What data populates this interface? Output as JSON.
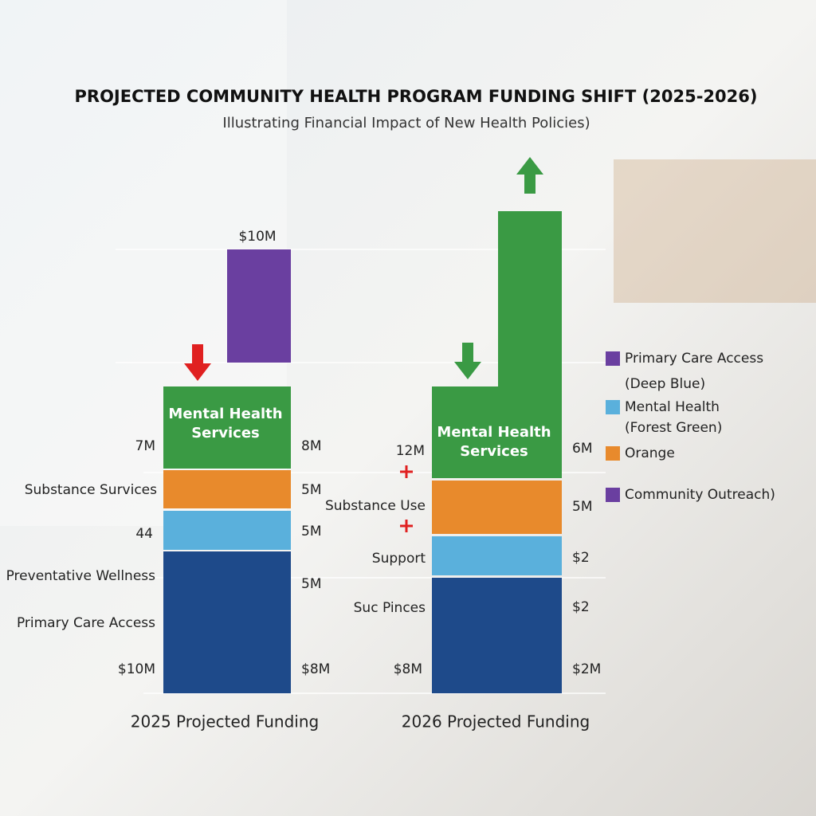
{
  "title": "PROJECTED COMMUNITY HEALTH PROGRAM FUNDING SHIFT (2025-2026)",
  "subtitle": "Illustrating Financial Impact of New Health Policies)",
  "bars": [
    {
      "category": "2025 Projected Funding",
      "top_label": "$10M",
      "segment_label": [
        "Mental Health",
        "Services"
      ],
      "left_labels": [
        "7M",
        "Substance Survices",
        "44",
        "Preventative Wellness",
        "Primary Care Access",
        "$10M"
      ],
      "right_labels": [
        "8M",
        "5M",
        "5M",
        "5M",
        "$8M"
      ]
    },
    {
      "category": "2026 Projected Funding",
      "segment_label": [
        "Mental Health",
        "Services"
      ],
      "left_labels": [
        "12M",
        "Substance Use",
        "Support",
        "Suc Pinces",
        "$8M"
      ],
      "right_labels": [
        "6M",
        "5M",
        "$2",
        "$2",
        "$2M"
      ]
    }
  ],
  "legend": [
    {
      "label": "Primary Care Access",
      "note": "(Deep Blue)"
    },
    {
      "label": "Mental Health",
      "note": "(Forest Green)"
    },
    {
      "label": "Orange"
    },
    {
      "label": "Community Outreach)"
    }
  ]
}
